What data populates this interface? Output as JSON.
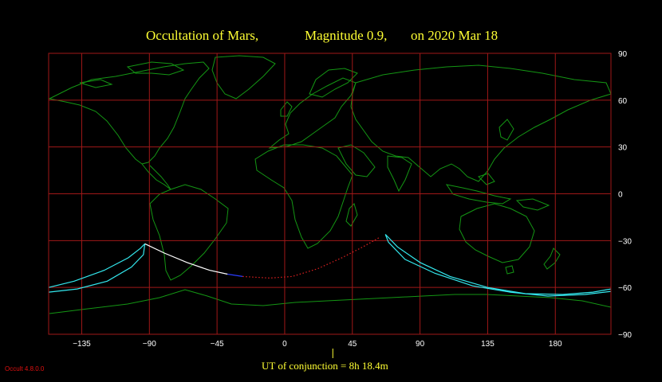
{
  "title": {
    "part1": "Occultation  of  Mars,",
    "part2": "Magnitude 0.9,",
    "part3": "on  2020 Mar 18"
  },
  "axes": {
    "lon_ticks": [
      "−135",
      "−90",
      "−45",
      "0",
      "45",
      "90",
      "135",
      "180"
    ],
    "lat_ticks": [
      "90",
      "60",
      "30",
      "0",
      "−30",
      "−60",
      "−90"
    ]
  },
  "conjunction_label": "UT of conjunction =  8h 18.4m",
  "version": "Occult 4.8.0.0",
  "colors": {
    "grid": "#a01818",
    "coast": "#149614",
    "limit": "#33e8ee",
    "central_visible": "#ffffff",
    "central_blue": "#2a3cff",
    "central_hidden": "#e02020",
    "title": "#ffff33"
  },
  "map": {
    "lon_range": [
      -157,
      217
    ],
    "lat_range": [
      -90,
      90
    ],
    "grid_lons": [
      -135,
      -90,
      -45,
      0,
      45,
      90,
      135,
      180
    ],
    "grid_lats": [
      60,
      30,
      0,
      -30,
      -60
    ],
    "conjunction_lon": 32
  },
  "paths": {
    "west_limit_a": [
      [
        -157,
        -60
      ],
      [
        -140,
        -56
      ],
      [
        -120,
        -49
      ],
      [
        -104,
        -41
      ],
      [
        -96,
        -35
      ],
      [
        -93,
        -32
      ]
    ],
    "west_limit_b": [
      [
        -157,
        -63
      ],
      [
        -138,
        -61
      ],
      [
        -118,
        -56
      ],
      [
        -102,
        -47
      ],
      [
        -94,
        -39
      ],
      [
        -93,
        -32
      ]
    ],
    "central_visible": [
      [
        -93,
        -32
      ],
      [
        -80,
        -38
      ],
      [
        -65,
        -44
      ],
      [
        -50,
        -49
      ],
      [
        -38,
        -51.5
      ]
    ],
    "central_blue": [
      [
        -38,
        -51.5
      ],
      [
        -28,
        -53
      ]
    ],
    "central_hidden": [
      [
        -28,
        -53
      ],
      [
        -10,
        -54
      ],
      [
        5,
        -53
      ],
      [
        22,
        -48
      ],
      [
        38,
        -41
      ],
      [
        52,
        -34
      ],
      [
        63,
        -28
      ]
    ],
    "east_limit_a": [
      [
        67,
        -26
      ],
      [
        75,
        -34
      ],
      [
        90,
        -44
      ],
      [
        110,
        -53
      ],
      [
        135,
        -60
      ],
      [
        160,
        -64
      ],
      [
        185,
        -64.5
      ],
      [
        205,
        -63
      ],
      [
        217,
        -61
      ]
    ],
    "east_limit_b": [
      [
        67,
        -26
      ],
      [
        69,
        -31
      ],
      [
        80,
        -42
      ],
      [
        100,
        -51
      ],
      [
        125,
        -59
      ],
      [
        150,
        -63
      ],
      [
        175,
        -65.5
      ],
      [
        200,
        -64.5
      ],
      [
        217,
        -62.5
      ]
    ]
  }
}
